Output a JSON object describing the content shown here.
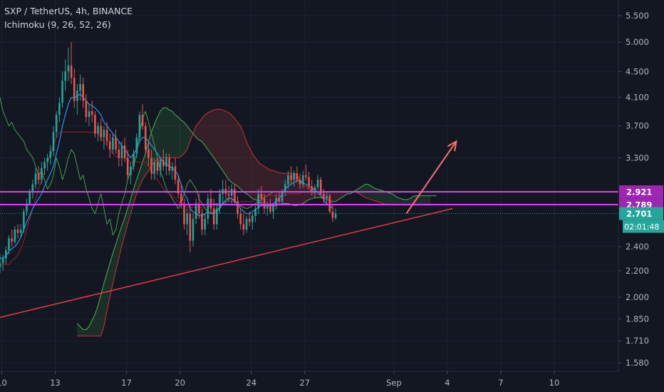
{
  "header": {
    "symbol_line": "SXP / TetherUS, 4h, BINANCE",
    "indicator_line": "Ichimoku (9, 26, 52, 26)"
  },
  "colors": {
    "background": "#131722",
    "grid": "#1e2230",
    "axis_text": "#b2b5be",
    "candle_up": "#26a69a",
    "candle_down": "#ef5350",
    "tenkan": "#2196f3",
    "kijun": "#a31c24",
    "span_a": "#4caf50",
    "span_b": "#d32f2f",
    "lagging": "#43a047",
    "level_line": "#e040fb",
    "trendline": "#e53945",
    "arrow": "#f7716f",
    "price_label_purple": "#9c27b0",
    "price_label_green": "#26a69a"
  },
  "chart_data": {
    "type": "candlestick",
    "title": "SXP / TetherUS, 4h, BINANCE",
    "indicator": "Ichimoku (9, 26, 52, 26)",
    "y_scale": "log",
    "ylim": [
      1.56,
      5.7
    ],
    "y_ticks": [
      "5.500",
      "5.000",
      "4.500",
      "4.100",
      "3.700",
      "3.300",
      "2.400",
      "2.200",
      "2.000",
      "1.850",
      "1.710",
      "1.580"
    ],
    "x_ticks": [
      "10",
      "13",
      "17",
      "20",
      "24",
      "27",
      "Sep",
      "4",
      "7",
      "10"
    ],
    "x_tick_days": [
      10,
      13,
      17,
      20,
      24,
      27,
      32,
      35,
      38,
      41
    ],
    "xlim_days": [
      9.9,
      44.6
    ],
    "candles_start_day": 9.9,
    "candle_interval_hours": 4,
    "ohlc": [
      [
        2.23,
        2.34,
        2.18,
        2.26
      ],
      [
        2.26,
        2.33,
        2.2,
        2.3
      ],
      [
        2.3,
        2.4,
        2.25,
        2.37
      ],
      [
        2.37,
        2.5,
        2.33,
        2.47
      ],
      [
        2.47,
        2.55,
        2.4,
        2.44
      ],
      [
        2.44,
        2.58,
        2.42,
        2.55
      ],
      [
        2.55,
        2.6,
        2.47,
        2.52
      ],
      [
        2.52,
        2.6,
        2.48,
        2.55
      ],
      [
        2.55,
        2.75,
        2.52,
        2.72
      ],
      [
        2.72,
        2.85,
        2.68,
        2.8
      ],
      [
        2.8,
        2.95,
        2.78,
        2.92
      ],
      [
        2.92,
        3.05,
        2.85,
        3
      ],
      [
        3,
        3.18,
        2.95,
        3.12
      ],
      [
        3.12,
        3.2,
        3,
        3.05
      ],
      [
        3.05,
        3.25,
        3,
        3.18
      ],
      [
        3.18,
        3.3,
        3.1,
        3.25
      ],
      [
        3.25,
        3.35,
        3.15,
        3.3
      ],
      [
        3.3,
        3.45,
        3.22,
        3.38
      ],
      [
        3.38,
        3.7,
        3.32,
        3.62
      ],
      [
        3.62,
        3.9,
        3.55,
        3.85
      ],
      [
        3.85,
        4.1,
        3.75,
        4.02
      ],
      [
        4.02,
        4.5,
        3.95,
        4.35
      ],
      [
        4.35,
        4.7,
        4.2,
        4.5
      ],
      [
        4.5,
        4.9,
        4.35,
        4.6
      ],
      [
        4.6,
        5,
        4.3,
        4.4
      ],
      [
        4.4,
        4.55,
        3.95,
        4.05
      ],
      [
        4.05,
        4.3,
        3.85,
        4.2
      ],
      [
        4.2,
        4.45,
        4.05,
        4.3
      ],
      [
        4.3,
        4.4,
        3.95,
        4.05
      ],
      [
        4.05,
        4.15,
        3.75,
        3.82
      ],
      [
        3.82,
        4,
        3.7,
        3.9
      ],
      [
        3.9,
        4.05,
        3.75,
        3.85
      ],
      [
        3.85,
        3.9,
        3.55,
        3.6
      ],
      [
        3.6,
        3.75,
        3.5,
        3.7
      ],
      [
        3.7,
        3.8,
        3.5,
        3.55
      ],
      [
        3.55,
        3.7,
        3.4,
        3.65
      ],
      [
        3.65,
        3.75,
        3.45,
        3.5
      ],
      [
        3.5,
        3.6,
        3.3,
        3.4
      ],
      [
        3.4,
        3.6,
        3.35,
        3.55
      ],
      [
        3.55,
        3.65,
        3.35,
        3.4
      ],
      [
        3.4,
        3.5,
        3.2,
        3.3
      ],
      [
        3.3,
        3.5,
        3.2,
        3.45
      ],
      [
        3.45,
        3.55,
        3.25,
        3.3
      ],
      [
        3.3,
        3.4,
        3.05,
        3.1
      ],
      [
        3.1,
        3.25,
        3,
        3.2
      ],
      [
        3.2,
        3.4,
        3.15,
        3.35
      ],
      [
        3.35,
        3.6,
        3.3,
        3.55
      ],
      [
        3.55,
        3.9,
        3.5,
        3.85
      ],
      [
        3.85,
        4,
        3.65,
        3.7
      ],
      [
        3.7,
        3.75,
        3.35,
        3.4
      ],
      [
        3.4,
        3.5,
        3.2,
        3.3
      ],
      [
        3.3,
        3.4,
        3.05,
        3.12
      ],
      [
        3.12,
        3.3,
        3.05,
        3.25
      ],
      [
        3.25,
        3.3,
        3.1,
        3.15
      ],
      [
        3.15,
        3.3,
        3.08,
        3.28
      ],
      [
        3.28,
        3.4,
        3.15,
        3.2
      ],
      [
        3.2,
        3.35,
        3.1,
        3.3
      ],
      [
        3.3,
        3.35,
        3.1,
        3.15
      ],
      [
        3.15,
        3.25,
        3.05,
        3.2
      ],
      [
        3.2,
        3.3,
        3,
        3.05
      ],
      [
        3.05,
        3.1,
        2.85,
        2.9
      ],
      [
        2.9,
        3,
        2.75,
        2.8
      ],
      [
        2.8,
        2.85,
        2.55,
        2.6
      ],
      [
        2.6,
        2.75,
        2.5,
        2.7
      ],
      [
        2.7,
        2.8,
        2.35,
        2.45
      ],
      [
        2.45,
        2.7,
        2.4,
        2.65
      ],
      [
        2.65,
        2.85,
        2.6,
        2.8
      ],
      [
        2.8,
        2.9,
        2.65,
        2.7
      ],
      [
        2.7,
        2.75,
        2.5,
        2.55
      ],
      [
        2.55,
        2.7,
        2.5,
        2.65
      ],
      [
        2.65,
        2.9,
        2.6,
        2.85
      ],
      [
        2.85,
        2.95,
        2.7,
        2.75
      ],
      [
        2.75,
        2.85,
        2.55,
        2.6
      ],
      [
        2.6,
        2.8,
        2.55,
        2.75
      ],
      [
        2.75,
        2.95,
        2.7,
        2.9
      ],
      [
        2.9,
        3.05,
        2.8,
        2.95
      ],
      [
        2.95,
        3.05,
        2.85,
        2.9
      ],
      [
        2.9,
        2.98,
        2.82,
        2.88
      ],
      [
        2.88,
        3,
        2.8,
        2.95
      ],
      [
        2.95,
        3,
        2.78,
        2.82
      ],
      [
        2.82,
        2.88,
        2.65,
        2.7
      ],
      [
        2.7,
        2.75,
        2.55,
        2.6
      ],
      [
        2.6,
        2.7,
        2.5,
        2.55
      ],
      [
        2.55,
        2.68,
        2.52,
        2.65
      ],
      [
        2.65,
        2.72,
        2.58,
        2.62
      ],
      [
        2.62,
        2.7,
        2.55,
        2.68
      ],
      [
        2.68,
        2.78,
        2.62,
        2.75
      ],
      [
        2.75,
        2.95,
        2.7,
        2.9
      ],
      [
        2.9,
        2.98,
        2.8,
        2.85
      ],
      [
        2.85,
        2.9,
        2.7,
        2.75
      ],
      [
        2.75,
        2.82,
        2.68,
        2.8
      ],
      [
        2.8,
        2.85,
        2.7,
        2.72
      ],
      [
        2.72,
        2.8,
        2.65,
        2.78
      ],
      [
        2.78,
        2.9,
        2.74,
        2.86
      ],
      [
        2.86,
        2.92,
        2.8,
        2.82
      ],
      [
        2.82,
        2.95,
        2.8,
        2.92
      ],
      [
        2.92,
        3.05,
        2.88,
        3
      ],
      [
        3,
        3.15,
        2.95,
        3.1
      ],
      [
        3.1,
        3.2,
        3,
        3.05
      ],
      [
        3.05,
        3.15,
        2.98,
        3.12
      ],
      [
        3.12,
        3.2,
        3.02,
        3.05
      ],
      [
        3.05,
        3.12,
        2.95,
        3
      ],
      [
        3,
        3.15,
        2.96,
        3.1
      ],
      [
        3.1,
        3.22,
        3.04,
        3.08
      ],
      [
        3.08,
        3.14,
        2.95,
        2.98
      ],
      [
        2.98,
        3.05,
        2.88,
        2.92
      ],
      [
        2.92,
        3,
        2.85,
        2.97
      ],
      [
        2.97,
        3.1,
        2.94,
        3.05
      ],
      [
        3.05,
        3.08,
        2.88,
        2.9
      ],
      [
        2.9,
        2.95,
        2.8,
        2.85
      ],
      [
        2.85,
        2.92,
        2.78,
        2.88
      ],
      [
        2.88,
        2.9,
        2.7,
        2.72
      ],
      [
        2.72,
        2.78,
        2.62,
        2.66
      ],
      [
        2.66,
        2.75,
        2.64,
        2.7
      ]
    ],
    "tenkan_sen": [
      2.3,
      2.3,
      2.32,
      2.36,
      2.38,
      2.4,
      2.43,
      2.48,
      2.55,
      2.62,
      2.68,
      2.75,
      2.8,
      2.85,
      2.9,
      2.98,
      3.05,
      3.12,
      3.2,
      3.35,
      3.5,
      3.7,
      3.85,
      4,
      4.1,
      4.1,
      4.12,
      4.15,
      4.1,
      4.05,
      4,
      3.98,
      3.95,
      3.9,
      3.85,
      3.75,
      3.7,
      3.65,
      3.6,
      3.55,
      3.5,
      3.45,
      3.4,
      3.35,
      3.3,
      3.35,
      3.4,
      3.5,
      3.55,
      3.55,
      3.5,
      3.45,
      3.4,
      3.35,
      3.3,
      3.25,
      3.22,
      3.2,
      3.18,
      3.15,
      3.1,
      3,
      2.9,
      2.85,
      2.75,
      2.72,
      2.7,
      2.68,
      2.68,
      2.7,
      2.72,
      2.7,
      2.7,
      2.72,
      2.75,
      2.8,
      2.82,
      2.85,
      2.85,
      2.83,
      2.8,
      2.75,
      2.72,
      2.7,
      2.7,
      2.72,
      2.74,
      2.76,
      2.78,
      2.78,
      2.78,
      2.79,
      2.8,
      2.82,
      2.85,
      2.9,
      2.95,
      2.98,
      3,
      3.02,
      3.04,
      3.04,
      3.02,
      3,
      2.98,
      2.96,
      2.94,
      2.92,
      2.88,
      2.84,
      2.8,
      2.78,
      2.75
    ],
    "kijun_sen": [
      2.25,
      2.25,
      2.25,
      2.25,
      2.28,
      2.3,
      2.33,
      2.38,
      2.45,
      2.55,
      2.65,
      2.75,
      2.85,
      2.95,
      3.05,
      3.15,
      3.25,
      3.35,
      3.45,
      3.55,
      3.62,
      3.62,
      3.62,
      3.62,
      3.62,
      3.62,
      3.62,
      3.62,
      3.62,
      3.62,
      3.62,
      3.62,
      3.62,
      3.62,
      3.55,
      3.5,
      3.45,
      3.4,
      3.35,
      3.32,
      3.3,
      3.3,
      3.3,
      3.28,
      3.25,
      3.25,
      3.25,
      3.25,
      3.25,
      3.25,
      3.2,
      3.15,
      3.1,
      3.05,
      3,
      2.95,
      2.92,
      2.9,
      2.88,
      2.85,
      2.82,
      2.8,
      2.78,
      2.76,
      2.76,
      2.76,
      2.76,
      2.76,
      2.76,
      2.76,
      2.76,
      2.78,
      2.8,
      2.8,
      2.8,
      2.8,
      2.8,
      2.82,
      2.82,
      2.82,
      2.82,
      2.82,
      2.82,
      2.82,
      2.82,
      2.82,
      2.84,
      2.86,
      2.88,
      2.88,
      2.88,
      2.88,
      2.88,
      2.88,
      2.88,
      2.88,
      2.88,
      2.9,
      2.9,
      2.9,
      2.9,
      2.9,
      2.92,
      2.92,
      2.92,
      2.92,
      2.9,
      2.9,
      2.88,
      2.86,
      2.84,
      2.82,
      2.8
    ],
    "cloud_start_day": 14.23,
    "senkou_span_a": [
      1.82,
      1.8,
      1.78,
      1.78,
      1.8,
      1.84,
      1.88,
      1.94,
      2.02,
      2.1,
      2.18,
      2.26,
      2.34,
      2.42,
      2.5,
      2.58,
      2.66,
      2.75,
      2.85,
      2.95,
      3.05,
      3.15,
      3.25,
      3.35,
      3.5,
      3.62,
      3.72,
      3.82,
      3.9,
      3.95,
      3.95,
      3.92,
      3.9,
      3.85,
      3.82,
      3.78,
      3.75,
      3.7,
      3.65,
      3.6,
      3.55,
      3.52,
      3.5,
      3.45,
      3.4,
      3.35,
      3.3,
      3.25,
      3.2,
      3.15,
      3.1,
      3.05,
      3.02,
      3,
      2.98,
      2.95,
      2.92,
      2.9,
      2.88,
      2.85,
      2.84,
      2.82,
      2.8,
      2.79,
      2.78,
      2.78,
      2.78,
      2.78,
      2.79,
      2.8,
      2.8,
      2.8,
      2.79,
      2.78,
      2.78,
      2.79,
      2.8,
      2.82,
      2.84,
      2.85,
      2.86,
      2.86,
      2.86,
      2.85,
      2.84,
      2.83,
      2.82,
      2.82,
      2.84,
      2.86,
      2.88,
      2.9,
      2.9,
      2.92,
      2.94,
      2.96,
      2.98,
      3,
      3,
      2.98,
      2.96,
      2.95,
      2.94,
      2.93,
      2.92,
      2.91,
      2.9,
      2.88,
      2.86,
      2.85,
      2.84,
      2.84,
      2.85,
      2.87,
      2.88,
      2.88,
      2.88,
      2.88,
      2.88,
      2.88,
      2.88,
      2.88
    ],
    "senkou_span_b": [
      1.74,
      1.74,
      1.74,
      1.74,
      1.74,
      1.74,
      1.74,
      1.74,
      1.74,
      1.8,
      1.9,
      2,
      2.1,
      2.2,
      2.3,
      2.4,
      2.5,
      2.6,
      2.7,
      2.8,
      2.9,
      2.98,
      3.05,
      3.1,
      3.15,
      3.2,
      3.25,
      3.28,
      3.3,
      3.3,
      3.3,
      3.3,
      3.3,
      3.3,
      3.3,
      3.32,
      3.35,
      3.4,
      3.5,
      3.6,
      3.7,
      3.75,
      3.8,
      3.85,
      3.88,
      3.9,
      3.92,
      3.93,
      3.93,
      3.92,
      3.9,
      3.88,
      3.85,
      3.8,
      3.75,
      3.7,
      3.6,
      3.5,
      3.42,
      3.35,
      3.3,
      3.25,
      3.22,
      3.2,
      3.18,
      3.16,
      3.15,
      3.14,
      3.13,
      3.12,
      3.12,
      3.12,
      3.12,
      3.12,
      3.1,
      3.05,
      3,
      2.98,
      2.95,
      2.93,
      2.92,
      2.92,
      2.92,
      2.92,
      2.92,
      2.92,
      2.92,
      2.92,
      2.92,
      2.92,
      2.92,
      2.92,
      2.92,
      2.92,
      2.92,
      2.9,
      2.88,
      2.86,
      2.85,
      2.84,
      2.83,
      2.82,
      2.81,
      2.8,
      2.79,
      2.79,
      2.79,
      2.79,
      2.79,
      2.79,
      2.79,
      2.79,
      2.79,
      2.79,
      2.79,
      2.79,
      2.79,
      2.79,
      2.79,
      2.79
    ],
    "chikou_start_day": 9.9,
    "chikou_span": [
      4.1,
      3.9,
      3.8,
      3.7,
      3.75,
      3.65,
      3.6,
      3.55,
      3.5,
      3.4,
      3.35,
      3.3,
      3.2,
      3.1,
      3.15,
      3.05,
      2.95,
      3,
      3.1,
      3.3,
      3.2,
      3.05,
      3.15,
      3.3,
      3.4,
      3.35,
      3.2,
      3.05,
      3.1,
      2.95,
      2.85,
      2.75,
      2.7,
      2.8,
      2.9,
      2.75,
      2.6,
      2.65,
      2.5,
      2.55,
      2.7,
      2.8,
      2.9,
      3.05,
      3.15,
      3.2,
      3.35,
      3.6,
      3.8,
      3.9,
      3.75,
      3.6,
      3.45,
      3.3,
      3.15,
      3.05,
      2.95,
      2.9,
      2.85,
      2.8,
      2.75,
      2.8,
      2.9,
      3,
      3.05,
      3,
      2.95,
      2.85,
      2.8,
      2.75,
      2.72,
      2.7,
      2.72,
      2.74,
      2.76,
      2.8,
      2.84,
      2.86,
      2.85,
      2.82,
      2.8,
      2.78,
      2.76,
      2.75,
      2.76,
      2.78,
      2.8,
      2.82,
      2.84,
      2.86,
      2.88,
      2.9,
      2.92
    ],
    "horizontal_levels": [
      2.921,
      2.789
    ],
    "price_labels": [
      {
        "text": "2.921",
        "value": 2.921,
        "color": "purple"
      },
      {
        "text": "2.789",
        "value": 2.789,
        "color": "purple"
      },
      {
        "text": "2.701",
        "value": 2.701,
        "color": "green"
      }
    ],
    "countdown_label": "02:01:48",
    "current_price": 2.701,
    "trendline": {
      "from": {
        "day": 9.9,
        "value": 1.86
      },
      "to": {
        "day": 35.3,
        "value": 2.75
      }
    },
    "projection_arrow": {
      "from": {
        "day": 32.7,
        "value": 2.7
      },
      "to": {
        "day": 35.5,
        "value": 3.5
      }
    },
    "grid": true,
    "legend": "top-left"
  }
}
